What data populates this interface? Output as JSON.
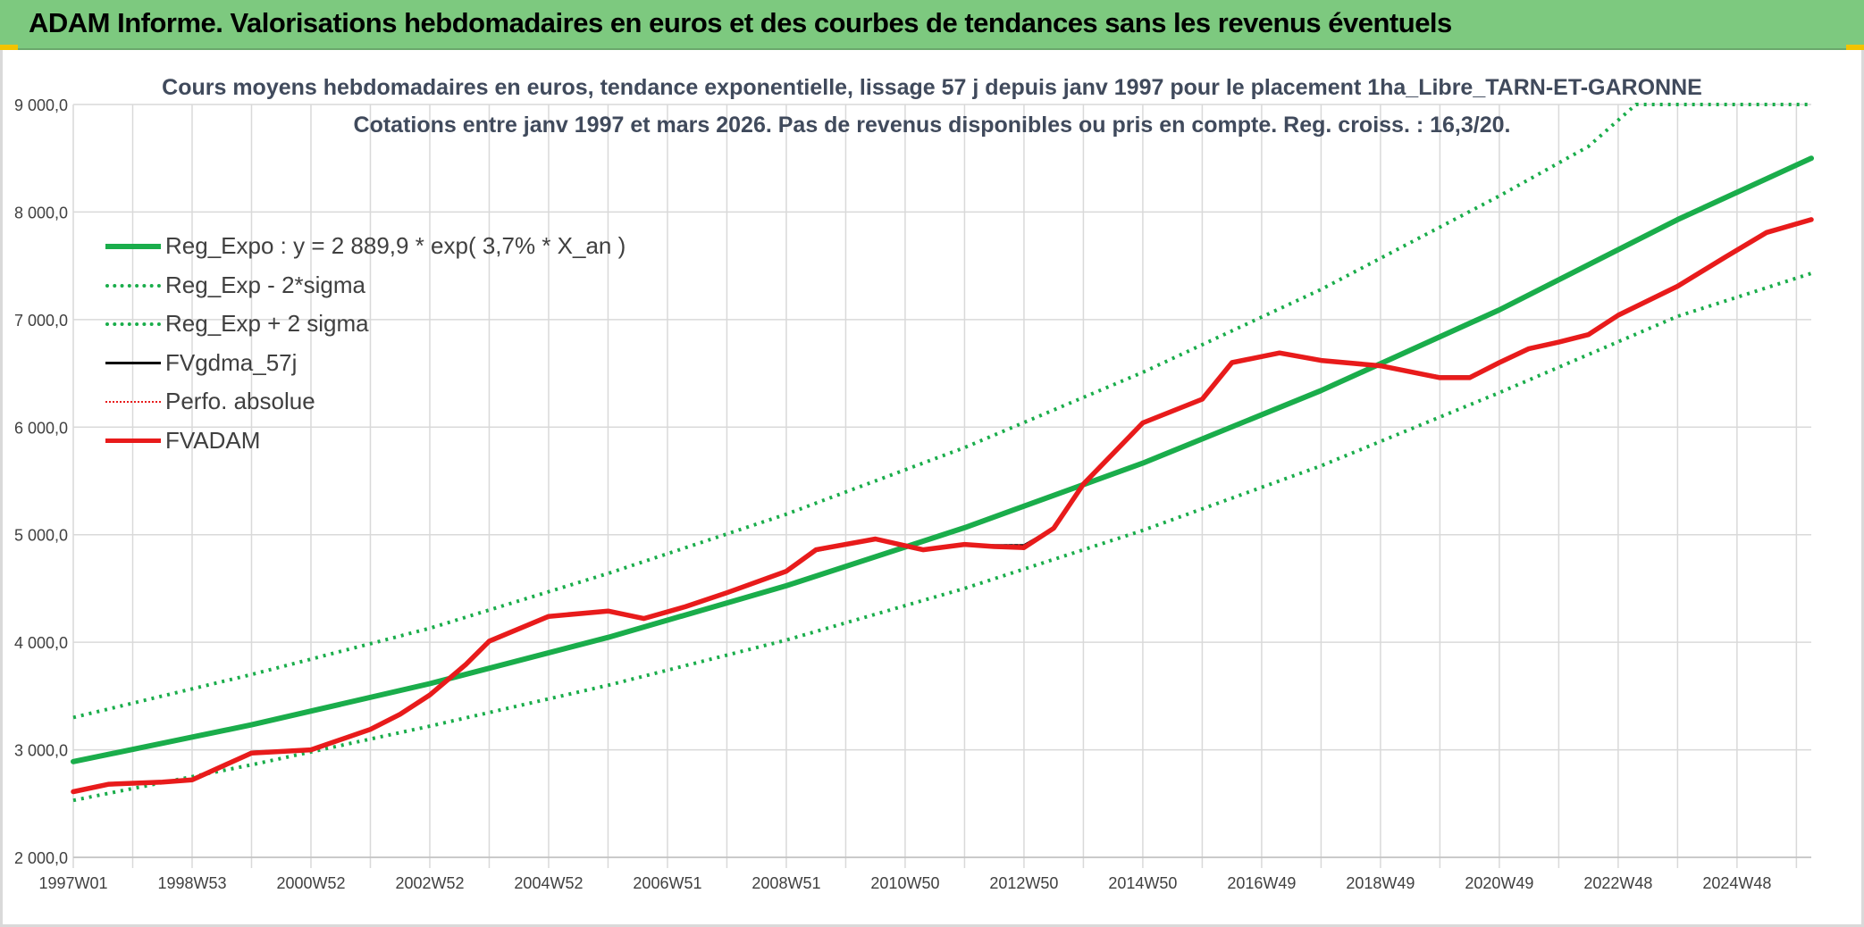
{
  "banner": {
    "title": "ADAM Informe. Valorisations hebdomadaires en euros et des courbes de tendances sans les revenus éventuels"
  },
  "colors": {
    "banner_bg": "#7dc97f",
    "reg_expo": "#1aad4b",
    "band": "#1aad4b",
    "fvgdma": "#000000",
    "perfo": "#e81b1b",
    "fvadam": "#e81b1b",
    "grid": "#d9d9d9"
  },
  "chart_data": {
    "type": "line",
    "title": "Cours moyens hebdomadaires en euros, tendance exponentielle, lissage 57 j depuis janv 1997 pour le placement 1ha_Libre_TARN-ET-GARONNE",
    "subtitle": "Cotations entre janv 1997 et mars 2026. Pas de revenus disponibles ou pris en compte. Reg. croiss. : 16,3/20.",
    "xlabel": "",
    "ylabel": "",
    "x_tick_labels": [
      "1997W01",
      "1998W53",
      "2000W52",
      "2002W52",
      "2004W52",
      "2006W51",
      "2008W51",
      "2010W50",
      "2012W50",
      "2014W50",
      "2016W49",
      "2018W49",
      "2020W49",
      "2022W48",
      "2024W48"
    ],
    "x_tick_years": [
      1997.0,
      1999.0,
      2001.0,
      2003.0,
      2005.0,
      2007.0,
      2009.0,
      2011.0,
      2013.0,
      2015.0,
      2017.0,
      2019.0,
      2021.0,
      2023.0,
      2025.0
    ],
    "xlim": [
      1997.0,
      2026.25
    ],
    "ylim": [
      2000,
      9000
    ],
    "y_ticks": [
      2000,
      3000,
      4000,
      5000,
      6000,
      7000,
      8000,
      9000
    ],
    "y_tick_labels": [
      "2 000,0",
      "3 000,0",
      "4 000,0",
      "5 000,0",
      "6 000,0",
      "7 000,0",
      "8 000,0",
      "9 000,0"
    ],
    "grid": true,
    "legend_position": "top-left",
    "series": [
      {
        "name": "Reg_Expo : y = 2 889,9 * exp( 3,7% *  X_an )",
        "style": "solid-thick",
        "x": [
          1997.0,
          2000.0,
          2003.0,
          2006.0,
          2009.0,
          2012.0,
          2015.0,
          2018.0,
          2021.0,
          2024.0,
          2026.25
        ],
        "y": [
          2890,
          3232,
          3615,
          4045,
          4525,
          5065,
          5665,
          6340,
          7090,
          7930,
          8500
        ]
      },
      {
        "name": "Reg_Exp - 2*sigma",
        "style": "dotted",
        "x": [
          1997.0,
          2000.0,
          2003.0,
          2006.0,
          2009.0,
          2012.0,
          2015.0,
          2018.0,
          2021.0,
          2024.0,
          2026.25
        ],
        "y": [
          2530,
          2860,
          3220,
          3600,
          4020,
          4500,
          5040,
          5640,
          6320,
          7030,
          7430
        ]
      },
      {
        "name": "Reg_Exp + 2 sigma",
        "style": "dotted",
        "x": [
          1997.0,
          2000.0,
          2003.0,
          2006.0,
          2009.0,
          2012.0,
          2015.0,
          2018.0,
          2021.0,
          2022.5,
          2023.3,
          2024.0,
          2026.25
        ],
        "y": [
          3300,
          3700,
          4130,
          4640,
          5190,
          5810,
          6510,
          7280,
          8150,
          8610,
          9000,
          9000,
          9000
        ]
      },
      {
        "name": "FVgdma_57j",
        "style": "solid-black",
        "x": [
          1997.0,
          1997.6,
          1998.5,
          1999.0,
          2000.0,
          2001.0,
          2002.0,
          2002.5,
          2003.0,
          2003.6,
          2004.0,
          2005.0,
          2006.0,
          2006.6,
          2007.3,
          2008.0,
          2009.0,
          2009.5,
          2010.5,
          2011.3,
          2012.0,
          2012.5,
          2013.0,
          2013.5,
          2014.0,
          2015.0,
          2016.0,
          2016.5,
          2017.3,
          2018.0,
          2019.0,
          2020.0,
          2020.5,
          2021.0,
          2021.5,
          2022.0,
          2022.5,
          2023.0,
          2024.0,
          2024.8,
          2025.5,
          2026.25
        ],
        "y": [
          2610,
          2680,
          2700,
          2720,
          2980,
          3000,
          3190,
          3330,
          3510,
          3790,
          4010,
          4240,
          4290,
          4220,
          4330,
          4460,
          4660,
          4850,
          4960,
          4860,
          4910,
          4900,
          4900,
          5060,
          5470,
          6040,
          6260,
          6600,
          6690,
          6620,
          6570,
          6470,
          6470,
          6600,
          6730,
          6790,
          6860,
          7040,
          7310,
          7580,
          7810,
          7930
        ]
      },
      {
        "name": "Perfo. absolue",
        "style": "dotted-red",
        "x": [
          1997.0,
          1997.6,
          1998.5,
          1999.0,
          2000.0,
          2001.0,
          2002.0,
          2002.5,
          2003.0,
          2003.6,
          2004.0,
          2005.0,
          2006.0,
          2006.6,
          2007.3,
          2008.0,
          2009.0,
          2009.5,
          2010.5,
          2011.3,
          2012.0,
          2012.5,
          2013.0,
          2013.5,
          2014.0,
          2015.0,
          2016.0,
          2016.5,
          2017.3,
          2018.0,
          2019.0,
          2020.0,
          2020.5,
          2021.0,
          2021.5,
          2022.0,
          2022.5,
          2023.0,
          2024.0,
          2024.8,
          2025.5,
          2026.25
        ],
        "y": [
          2610,
          2680,
          2700,
          2720,
          2970,
          3000,
          3190,
          3330,
          3510,
          3790,
          4010,
          4240,
          4290,
          4220,
          4330,
          4460,
          4660,
          4850,
          4960,
          4860,
          4910,
          4900,
          4900,
          5060,
          5470,
          6040,
          6260,
          6600,
          6690,
          6620,
          6570,
          6470,
          6470,
          6600,
          6730,
          6790,
          6860,
          7040,
          7310,
          7580,
          7810,
          7930
        ]
      },
      {
        "name": "FVADAM",
        "style": "solid-red-thick",
        "x": [
          1997.0,
          1997.6,
          1998.5,
          1999.0,
          2000.0,
          2001.0,
          2002.0,
          2002.5,
          2003.0,
          2003.6,
          2004.0,
          2005.0,
          2006.0,
          2006.6,
          2007.3,
          2008.0,
          2009.0,
          2009.5,
          2010.5,
          2011.3,
          2012.0,
          2012.5,
          2013.0,
          2013.5,
          2014.0,
          2015.0,
          2016.0,
          2016.5,
          2017.3,
          2018.0,
          2019.0,
          2020.0,
          2020.5,
          2021.0,
          2021.5,
          2022.0,
          2022.5,
          2023.0,
          2024.0,
          2024.8,
          2025.5,
          2026.25
        ],
        "y": [
          2610,
          2680,
          2700,
          2720,
          2970,
          3000,
          3190,
          3330,
          3510,
          3790,
          4010,
          4240,
          4290,
          4220,
          4330,
          4460,
          4660,
          4860,
          4960,
          4860,
          4910,
          4890,
          4880,
          5060,
          5470,
          6040,
          6260,
          6600,
          6690,
          6620,
          6570,
          6460,
          6460,
          6600,
          6730,
          6790,
          6860,
          7040,
          7310,
          7580,
          7810,
          7930
        ]
      }
    ]
  }
}
